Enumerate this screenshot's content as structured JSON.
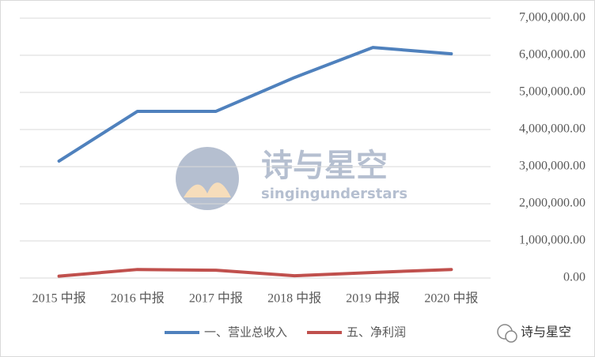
{
  "chart_data": {
    "type": "line",
    "categories": [
      "2015 中报",
      "2016 中报",
      "2017 中报",
      "2018 中报",
      "2019 中报",
      "2020 中报"
    ],
    "series": [
      {
        "name": "一、营业总收入",
        "color": "#4f81bd",
        "values": [
          3150000,
          4490000,
          4490000,
          5400000,
          6210000,
          6040000
        ]
      },
      {
        "name": "五、净利润",
        "color": "#c0504d",
        "values": [
          50000,
          230000,
          210000,
          60000,
          150000,
          230000
        ]
      }
    ],
    "ylim": [
      0,
      7000000
    ],
    "yticks": [
      {
        "value": 0,
        "label": "0.00"
      },
      {
        "value": 1000000,
        "label": "1,000,000.00"
      },
      {
        "value": 2000000,
        "label": "2,000,000.00"
      },
      {
        "value": 3000000,
        "label": "3,000,000.00"
      },
      {
        "value": 4000000,
        "label": "4,000,000.00"
      },
      {
        "value": 5000000,
        "label": "5,000,000.00"
      },
      {
        "value": 6000000,
        "label": "6,000,000.00"
      },
      {
        "value": 7000000,
        "label": "7,000,000.00"
      }
    ],
    "y_axis_side": "right",
    "grid": true,
    "legend": "bottom",
    "watermark": "诗与星空",
    "watermark_subtitle": "singingunderstars",
    "badge": "诗与星空"
  }
}
